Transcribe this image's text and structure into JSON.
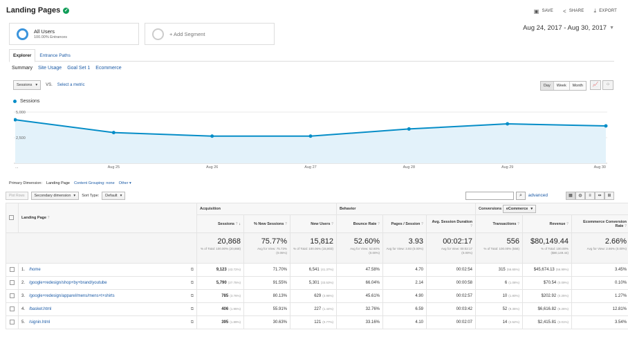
{
  "header": {
    "title": "Landing Pages",
    "save": "SAVE",
    "share": "SHARE",
    "export": "EXPORT"
  },
  "segments": {
    "active_name": "All Users",
    "active_sub": "100.00% Entrances",
    "add_label": "+ Add Segment"
  },
  "daterange": "Aug 24, 2017 - Aug 30, 2017",
  "tabs": [
    "Explorer",
    "Entrance Paths"
  ],
  "subnav": [
    "Summary",
    "Site Usage",
    "Goal Set 1",
    "Ecommerce"
  ],
  "metric": {
    "selected": "Sessions",
    "vs": "VS.",
    "select_metric": "Select a metric"
  },
  "period_buttons": [
    "Day",
    "Week",
    "Month"
  ],
  "chart_data": {
    "type": "line",
    "series": [
      {
        "name": "Sessions",
        "values": [
          4250,
          3000,
          2650,
          2650,
          3350,
          3850,
          3650
        ]
      }
    ],
    "x": [
      "Aug 24",
      "Aug 25",
      "Aug 26",
      "Aug 27",
      "Aug 28",
      "Aug 29",
      "Aug 30"
    ],
    "x_tick_labels": [
      "...",
      "Aug 25",
      "Aug 26",
      "Aug 27",
      "Aug 28",
      "Aug 29",
      "Aug 30"
    ],
    "y_tick_labels": [
      "5,000",
      "2,500"
    ],
    "ylim": [
      0,
      5000
    ],
    "color": "#058dc7",
    "fill": "#e3f2fa"
  },
  "dimension": {
    "label": "Primary Dimension:",
    "current": "Landing Page",
    "content_grouping": "Content Grouping: none",
    "other": "Other"
  },
  "filterbar": {
    "plot_rows": "Plot Rows",
    "secondary_dimension": "Secondary dimension",
    "sort_type_label": "Sort Type:",
    "sort_type_value": "Default",
    "advanced": "advanced"
  },
  "table": {
    "groups": {
      "acquisition": "Acquisition",
      "behavior": "Behavior",
      "conversions": "Conversions",
      "conversions_select": "eCommerce"
    },
    "dimension_header": "Landing Page",
    "columns": [
      "Sessions",
      "% New Sessions",
      "New Users",
      "Bounce Rate",
      "Pages / Session",
      "Avg. Session Duration",
      "Transactions",
      "Revenue",
      "Ecommerce Conversion Rate"
    ],
    "totals": [
      {
        "big": "20,868",
        "sm": "% of Total: 100.00% (20,868)"
      },
      {
        "big": "75.77%",
        "sm": "Avg for View: 75.73% (0.05%)"
      },
      {
        "big": "15,812",
        "sm": "% of Total: 100.06% (15,803)"
      },
      {
        "big": "52.60%",
        "sm": "Avg for View: 52.60% (0.00%)"
      },
      {
        "big": "3.93",
        "sm": "Avg for View: 3.93 (0.00%)"
      },
      {
        "big": "00:02:17",
        "sm": "Avg for View: 00:02:17 (0.00%)"
      },
      {
        "big": "556",
        "sm": "% of Total: 100.00% (556)"
      },
      {
        "big": "$80,149.44",
        "sm": "% of Total: 100.00% ($80,149.44)"
      },
      {
        "big": "2.66%",
        "sm": "Avg for View: 2.66% (0.00%)"
      }
    ],
    "rows": [
      {
        "idx": "1.",
        "page": "/home",
        "sessions": "9,123",
        "sessions_pct": "(43.72%)",
        "new_sessions": "71.70%",
        "new_users": "6,541",
        "new_users_pct": "(41.37%)",
        "bounce": "47.58%",
        "pps": "4.70",
        "dur": "00:02:54",
        "tx": "315",
        "tx_pct": "(56.65%)",
        "rev": "$45,674.13",
        "rev_pct": "(56.99%)",
        "conv": "3.45%"
      },
      {
        "idx": "2.",
        "page": "/google+redesign/shop+by+brand/youtube",
        "sessions": "5,790",
        "sessions_pct": "(27.75%)",
        "new_sessions": "91.55%",
        "new_users": "5,301",
        "new_users_pct": "(33.53%)",
        "bounce": "66.04%",
        "pps": "2.14",
        "dur": "00:00:58",
        "tx": "6",
        "tx_pct": "(1.08%)",
        "rev": "$70.54",
        "rev_pct": "(0.09%)",
        "conv": "0.10%"
      },
      {
        "idx": "3.",
        "page": "/google+redesign/apparel/mens/mens+t+shirts",
        "sessions": "785",
        "sessions_pct": "(3.76%)",
        "new_sessions": "80.13%",
        "new_users": "629",
        "new_users_pct": "(3.98%)",
        "bounce": "45.61%",
        "pps": "4.90",
        "dur": "00:02:57",
        "tx": "10",
        "tx_pct": "(1.80%)",
        "rev": "$202.92",
        "rev_pct": "(0.25%)",
        "conv": "1.27%"
      },
      {
        "idx": "4.",
        "page": "/basket.html",
        "sessions": "406",
        "sessions_pct": "(1.95%)",
        "new_sessions": "55.91%",
        "new_users": "227",
        "new_users_pct": "(1.44%)",
        "bounce": "32.76%",
        "pps": "6.59",
        "dur": "00:03:42",
        "tx": "52",
        "tx_pct": "(9.35%)",
        "rev": "$6,616.82",
        "rev_pct": "(8.26%)",
        "conv": "12.81%"
      },
      {
        "idx": "5.",
        "page": "/signin.html",
        "sessions": "395",
        "sessions_pct": "(1.89%)",
        "new_sessions": "30.63%",
        "new_users": "121",
        "new_users_pct": "(0.77%)",
        "bounce": "33.16%",
        "pps": "4.10",
        "dur": "00:02:07",
        "tx": "14",
        "tx_pct": "(2.52%)",
        "rev": "$2,415.81",
        "rev_pct": "(3.01%)",
        "conv": "3.54%"
      }
    ]
  }
}
